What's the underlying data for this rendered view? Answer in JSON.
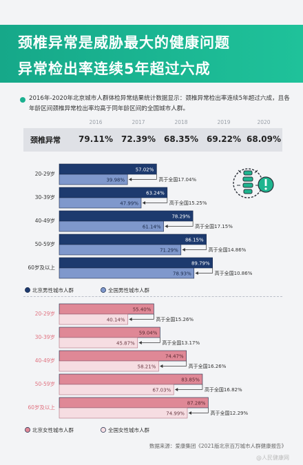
{
  "title": {
    "line1": "颈椎异常是威胁最大的健康问题",
    "line2": "异常检出率连续5年超过六成"
  },
  "intro": "2016年-2020年北京城市人群体检异常结果统计数据显示：颈椎异常检出率连续5年超过六成，且各年龄区间颈椎异常检出率均高于同年龄区间的全国城市人群。",
  "rate_table": {
    "row_label": "颈椎异常",
    "years": [
      "2016",
      "2017",
      "2018",
      "2019",
      "2020"
    ],
    "values": [
      "79.11%",
      "72.39%",
      "68.35%",
      "69.22%",
      "68.09%"
    ]
  },
  "icon": "spine-alert-icon",
  "chart_data": [
    {
      "type": "bar",
      "categories": [
        "20-29岁",
        "30-39岁",
        "40-49岁",
        "50-59岁",
        "60岁及以上"
      ],
      "xlim": [
        0,
        100
      ],
      "series": [
        {
          "name": "北京男性城市人群",
          "values": [
            57.02,
            63.24,
            78.29,
            86.15,
            89.79
          ],
          "color": "#1d3a6e"
        },
        {
          "name": "全国男性城市人群",
          "values": [
            39.98,
            47.99,
            61.14,
            71.29,
            78.93
          ],
          "color": "#7f98cc"
        }
      ],
      "annotations": [
        "高于全国17.04%",
        "高于全国15.25%",
        "高于全国17.15%",
        "高于全国14.86%",
        "高于全国10.86%"
      ],
      "label_color": "#333333"
    },
    {
      "type": "bar",
      "categories": [
        "20-29岁",
        "30-39岁",
        "40-49岁",
        "50-59岁",
        "60岁及以上"
      ],
      "xlim": [
        0,
        100
      ],
      "series": [
        {
          "name": "北京女性城市人群",
          "values": [
            55.4,
            59.04,
            74.47,
            83.85,
            87.28
          ],
          "color": "#df8896"
        },
        {
          "name": "全国女性城市人群",
          "values": [
            40.14,
            45.87,
            58.21,
            67.03,
            74.99
          ],
          "color": "#f6dde2"
        }
      ],
      "annotations": [
        "高于全国15.26%",
        "高于全国13.17%",
        "高于全国16.26%",
        "高于全国16.82%",
        "高于全国12.29%"
      ],
      "label_color": "#e0717f"
    }
  ],
  "source": "数据来源：爱康集团《2021版北京百万城市人群健康报告》",
  "watermark": "@人民健康网"
}
